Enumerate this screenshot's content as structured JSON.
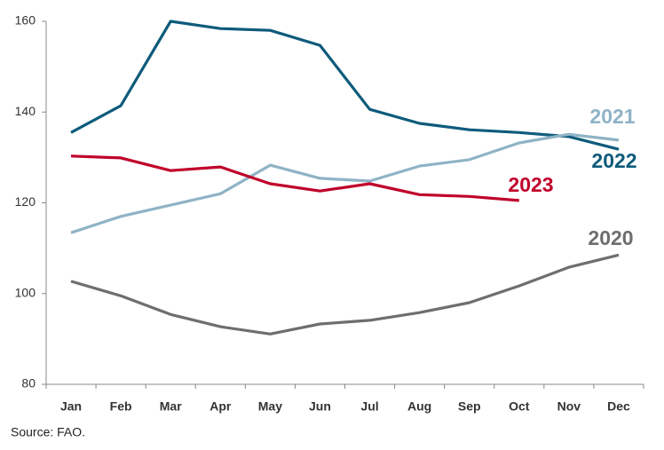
{
  "chart_data": {
    "type": "line",
    "categories": [
      "Jan",
      "Feb",
      "Mar",
      "Apr",
      "May",
      "Jun",
      "Jul",
      "Aug",
      "Sep",
      "Oct",
      "Nov",
      "Dec"
    ],
    "series": [
      {
        "name": "2022",
        "color": "#0e5b7b",
        "values": [
          135.5,
          141.4,
          160,
          158.4,
          158,
          154.7,
          140.6,
          137.5,
          136.1,
          135.5,
          134.6,
          131.8
        ]
      },
      {
        "name": "2021",
        "color": "#8fb3c6",
        "values": [
          113.4,
          117,
          119.5,
          122,
          128.3,
          125.4,
          124.8,
          128.1,
          129.5,
          133.2,
          135.1,
          133.8
        ]
      },
      {
        "name": "2023",
        "color": "#c0002a",
        "values": [
          130.3,
          129.9,
          127.1,
          127.9,
          124.2,
          122.6,
          124.2,
          121.8,
          121.4,
          120.5,
          null,
          null
        ]
      },
      {
        "name": "2020",
        "color": "#6e6e6e",
        "values": [
          102.7,
          99.5,
          95.4,
          92.7,
          91.1,
          93.3,
          94.1,
          95.8,
          98,
          101.7,
          105.8,
          108.5
        ]
      }
    ],
    "ylim": [
      80,
      160
    ],
    "yticks": [
      80,
      100,
      120,
      140,
      160
    ],
    "grid": false,
    "source": "Source: FAO."
  }
}
